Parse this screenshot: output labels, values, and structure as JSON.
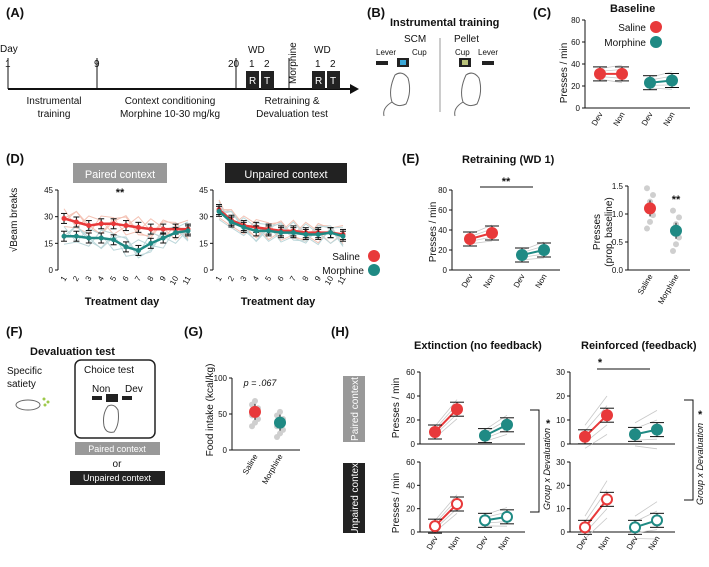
{
  "colors": {
    "saline": "#e8393a",
    "morphine": "#1f8a84",
    "gray": "#b5b5b5",
    "dark": "#222222"
  },
  "panels": {
    "A": "(A)",
    "B": "(B)",
    "C": "(C)",
    "D": "(D)",
    "E": "(E)",
    "F": "(F)",
    "G": "(G)",
    "H": "(H)"
  },
  "timeline": {
    "day_label": "Day",
    "ticks": [
      "1",
      "9",
      "20"
    ],
    "wd1": "WD",
    "wd1_nums": [
      "1",
      "2"
    ],
    "wd1_letters": [
      "R",
      "T"
    ],
    "morphine": "Morphine",
    "wd2": "WD",
    "wd2_nums": [
      "1",
      "2"
    ],
    "wd2_letters": [
      "R",
      "T"
    ],
    "phase1": [
      "Instrumental",
      "training"
    ],
    "phase2": [
      "Context conditioning",
      "Morphine 10-30 mg/kg"
    ],
    "phase3": [
      "Retraining &",
      "Devaluation test"
    ]
  },
  "instrumental": {
    "title": "Instrumental training",
    "left": "SCM",
    "right": "Pellet",
    "lever": "Lever",
    "cup": "Cup"
  },
  "baseline": {
    "title": "Baseline",
    "ylabel": "Presses / min",
    "yticks": [
      "0",
      "20",
      "40",
      "60",
      "80"
    ],
    "xticks": [
      "Dev",
      "Non",
      "Dev",
      "Non"
    ],
    "legend": {
      "saline": "Saline",
      "morphine": "Morphine"
    },
    "saline": [
      31,
      31
    ],
    "morphine": [
      23,
      25
    ]
  },
  "beam": {
    "ylabel": "√Beam breaks",
    "yticks": [
      "0",
      "15",
      "30",
      "45"
    ],
    "xlabel": "Treatment day",
    "days": [
      "1",
      "2",
      "3",
      "4",
      "5",
      "6",
      "7",
      "8",
      "9",
      "10",
      "11"
    ],
    "paired": {
      "label": "Paired context",
      "sig": "**",
      "saline": [
        29,
        27,
        25,
        26,
        26,
        25,
        24,
        23,
        23,
        23,
        23
      ],
      "morphine": [
        19,
        19,
        18,
        18,
        17,
        13,
        11,
        15,
        18,
        21,
        22
      ]
    },
    "unpaired": {
      "label": "Unpaired context",
      "saline": [
        34,
        28,
        25,
        24,
        23,
        22,
        22,
        21,
        21,
        21,
        20
      ],
      "morphine": [
        33,
        27,
        24,
        22,
        22,
        21,
        21,
        20,
        20,
        21,
        19
      ]
    },
    "legend": {
      "saline": "Saline",
      "morphine": "Morphine"
    }
  },
  "retraining": {
    "title": "Retraining (WD 1)",
    "ylabel": "Presses / min",
    "yticks": [
      "0",
      "20",
      "40",
      "60",
      "80"
    ],
    "xticks": [
      "Dev",
      "Non",
      "Dev",
      "Non"
    ],
    "sig": "**",
    "saline": [
      31,
      37
    ],
    "morphine": [
      15,
      20
    ],
    "ylabel2": "Presses\n(prop. baseline)",
    "ylabel2a": "Presses",
    "ylabel2b": "(prop. baseline)",
    "yticks2": [
      "0.0",
      "0.5",
      "1.0",
      "1.5"
    ],
    "xticks2": [
      "Saline",
      "Morphine"
    ],
    "sig2": "**",
    "prop": [
      1.1,
      0.7
    ]
  },
  "devaluation": {
    "title": "Devaluation test",
    "satiety": [
      "Specific",
      "satiety"
    ],
    "choice": "Choice test",
    "non": "Non",
    "dev": "Dev",
    "paired": "Paired context",
    "or": "or",
    "unpaired": "Unpaired context"
  },
  "food": {
    "ylabel": "Food intake (kcal/kg)",
    "yticks": [
      "0",
      "50",
      "100"
    ],
    "p": "p = .067",
    "xticks": [
      "Saline",
      "Morphine"
    ],
    "values": [
      53,
      38
    ]
  },
  "extinction": {
    "ext_title": "Extinction (no feedback)",
    "reinf_title": "Reinforced (feedback)",
    "paired": "Paired context",
    "unpaired": "Unpaired context",
    "ylabel": "Presses / min",
    "yticks_ext": [
      "0",
      "20",
      "40",
      "60"
    ],
    "yticks_reinf": [
      "0",
      "10",
      "20",
      "30"
    ],
    "xticks": [
      "Dev",
      "Non",
      "Dev",
      "Non"
    ],
    "interaction": "Group x Devaluation",
    "star": "*",
    "sig_reinf": "*",
    "ext_paired": {
      "saline": [
        10,
        29
      ],
      "morphine": [
        7,
        16
      ]
    },
    "ext_unpaired": {
      "saline": [
        5,
        24
      ],
      "morphine": [
        10,
        13
      ]
    },
    "reinf_paired": {
      "saline": [
        3,
        12
      ],
      "morphine": [
        4,
        6
      ]
    },
    "reinf_unpaired": {
      "saline": [
        2,
        14
      ],
      "morphine": [
        2,
        5
      ]
    }
  }
}
